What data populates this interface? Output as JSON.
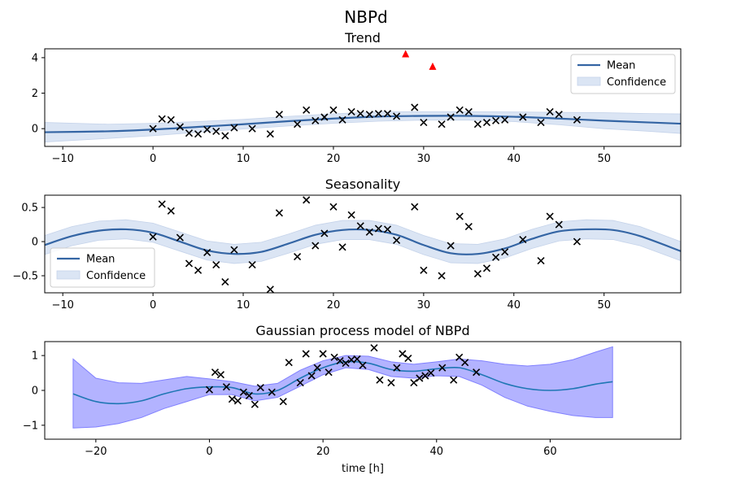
{
  "figure": {
    "suptitle": "NBPd"
  },
  "chart_data": [
    {
      "type": "line",
      "title": "Trend",
      "xlim": [
        -12,
        58.5
      ],
      "ylim": [
        -1.0,
        4.5
      ],
      "xticks": [
        -10,
        0,
        10,
        20,
        30,
        40,
        50
      ],
      "yticks": [
        0,
        2,
        4
      ],
      "xlabel": "",
      "legend": {
        "position": "top-right",
        "entries": [
          "Mean",
          "Confidence"
        ]
      },
      "colors": {
        "mean": "#3465a4",
        "band": "#dbe5f4",
        "points": "#000000",
        "outliers": "#ff0000"
      },
      "mean": {
        "x": [
          -12,
          -5,
          0,
          5,
          10,
          15,
          20,
          25,
          30,
          35,
          40,
          45,
          50,
          55,
          58.5
        ],
        "y": [
          -0.2,
          -0.15,
          -0.05,
          0.1,
          0.25,
          0.42,
          0.57,
          0.68,
          0.72,
          0.72,
          0.67,
          0.57,
          0.45,
          0.35,
          0.28
        ]
      },
      "band": {
        "lower": [
          -0.75,
          -0.55,
          -0.4,
          -0.2,
          -0.02,
          0.15,
          0.3,
          0.42,
          0.48,
          0.48,
          0.4,
          0.22,
          0.0,
          -0.15,
          -0.27
        ],
        "upper": [
          0.35,
          0.25,
          0.3,
          0.4,
          0.52,
          0.69,
          0.84,
          0.94,
          0.96,
          0.96,
          0.94,
          0.92,
          0.9,
          0.85,
          0.83
        ]
      },
      "points": {
        "x": [
          0,
          1,
          2,
          3,
          4,
          5,
          6,
          7,
          8,
          9,
          11,
          13,
          14,
          16,
          17,
          18,
          19,
          20,
          21,
          22,
          23,
          24,
          25,
          26,
          27,
          29,
          30,
          32,
          33,
          34,
          35,
          36,
          37,
          38,
          39,
          41,
          43,
          44,
          45,
          47
        ],
        "y": [
          0.0,
          0.55,
          0.5,
          0.1,
          -0.25,
          -0.3,
          -0.05,
          -0.15,
          -0.4,
          0.05,
          0.0,
          -0.3,
          0.8,
          0.25,
          1.05,
          0.45,
          0.65,
          1.05,
          0.5,
          0.95,
          0.85,
          0.8,
          0.85,
          0.85,
          0.7,
          1.2,
          0.35,
          0.25,
          0.65,
          1.05,
          0.95,
          0.25,
          0.35,
          0.45,
          0.5,
          0.65,
          0.35,
          0.95,
          0.8,
          0.5
        ]
      },
      "outliers": {
        "x": [
          28,
          31
        ],
        "y": [
          4.2,
          3.5
        ]
      }
    },
    {
      "type": "line",
      "title": "Seasonality",
      "xlim": [
        -12,
        58.5
      ],
      "ylim": [
        -0.75,
        0.68
      ],
      "xticks": [
        -10,
        0,
        10,
        20,
        30,
        40,
        50
      ],
      "yticks": [
        -0.5,
        0.0,
        0.5
      ],
      "xlabel": "",
      "legend": {
        "position": "lower-left",
        "entries": [
          "Mean",
          "Confidence"
        ]
      },
      "colors": {
        "mean": "#3465a4",
        "band": "#dbe5f4",
        "points": "#000000"
      },
      "mean": {
        "x": [
          -12,
          -9,
          -6,
          -3,
          0,
          3,
          6,
          9,
          12,
          15,
          18,
          21,
          24,
          27,
          30,
          33,
          36,
          39,
          42,
          45,
          48,
          51,
          54,
          58.5
        ],
        "y": [
          -0.05,
          0.08,
          0.16,
          0.18,
          0.13,
          0.0,
          -0.13,
          -0.18,
          -0.15,
          -0.03,
          0.1,
          0.17,
          0.17,
          0.1,
          -0.05,
          -0.17,
          -0.18,
          -0.1,
          0.04,
          0.15,
          0.18,
          0.17,
          0.08,
          -0.14
        ]
      },
      "band_halfwidth": 0.14,
      "points": {
        "x": [
          0,
          1,
          2,
          3,
          4,
          5,
          6,
          7,
          8,
          9,
          11,
          13,
          14,
          16,
          17,
          18,
          19,
          20,
          21,
          22,
          23,
          24,
          25,
          26,
          27,
          29,
          30,
          32,
          33,
          34,
          35,
          36,
          37,
          38,
          39,
          41,
          43,
          44,
          45,
          47
        ],
        "y": [
          0.07,
          0.55,
          0.45,
          0.06,
          -0.32,
          -0.42,
          -0.16,
          -0.34,
          -0.59,
          -0.12,
          -0.34,
          -0.7,
          0.42,
          -0.22,
          0.61,
          -0.06,
          0.12,
          0.51,
          -0.08,
          0.39,
          0.23,
          0.14,
          0.19,
          0.18,
          0.02,
          0.51,
          -0.42,
          -0.5,
          -0.06,
          0.37,
          0.22,
          -0.47,
          -0.39,
          -0.23,
          -0.15,
          0.03,
          -0.28,
          0.37,
          0.25,
          0.0
        ]
      }
    },
    {
      "type": "line",
      "title": "Gaussian process model of NBPd",
      "xlim": [
        -29,
        83
      ],
      "ylim": [
        -1.4,
        1.4
      ],
      "xticks": [
        -20,
        0,
        20,
        40,
        60
      ],
      "yticks": [
        -1,
        0,
        1
      ],
      "xlabel": "time [h]",
      "colors": {
        "mean": "#1f77b4",
        "band": "#b3b3ff",
        "band_edge": "#8080ff",
        "points": "#000000"
      },
      "mean": {
        "x": [
          -24,
          -20,
          -16,
          -12,
          -8,
          -4,
          0,
          4,
          8,
          12,
          16,
          20,
          24,
          28,
          32,
          36,
          40,
          44,
          48,
          52,
          56,
          60,
          64,
          68,
          71
        ],
        "y": [
          -0.1,
          -0.32,
          -0.38,
          -0.3,
          -0.1,
          0.05,
          0.1,
          0.08,
          -0.1,
          0.0,
          0.35,
          0.65,
          0.82,
          0.78,
          0.6,
          0.55,
          0.62,
          0.65,
          0.45,
          0.2,
          0.05,
          0.0,
          0.05,
          0.18,
          0.25
        ]
      },
      "band": {
        "lower": [
          -1.08,
          -1.05,
          -0.95,
          -0.78,
          -0.52,
          -0.32,
          -0.12,
          -0.12,
          -0.3,
          -0.2,
          0.12,
          0.45,
          0.65,
          0.6,
          0.4,
          0.35,
          0.42,
          0.4,
          0.15,
          -0.2,
          -0.45,
          -0.6,
          -0.72,
          -0.78,
          -0.78
        ]
      },
      "band_upper": [
        0.9,
        0.35,
        0.22,
        0.2,
        0.3,
        0.4,
        0.33,
        0.25,
        0.12,
        0.2,
        0.58,
        0.85,
        1.0,
        0.98,
        0.82,
        0.75,
        0.82,
        0.9,
        0.85,
        0.75,
        0.7,
        0.75,
        0.88,
        1.1,
        1.25
      ],
      "points": {
        "x": [
          0,
          1,
          2,
          3,
          4,
          5,
          6,
          7,
          8,
          9,
          11,
          13,
          14,
          16,
          17,
          18,
          19,
          20,
          21,
          22,
          23,
          24,
          25,
          26,
          27,
          29,
          30,
          32,
          33,
          34,
          35,
          36,
          37,
          38,
          39,
          41,
          43,
          44,
          45,
          47
        ],
        "y": [
          0.02,
          0.52,
          0.45,
          0.1,
          -0.25,
          -0.3,
          -0.05,
          -0.15,
          -0.4,
          0.08,
          -0.05,
          -0.32,
          0.8,
          0.22,
          1.05,
          0.42,
          0.65,
          1.05,
          0.52,
          0.95,
          0.85,
          0.78,
          0.88,
          0.9,
          0.72,
          1.22,
          0.3,
          0.22,
          0.65,
          1.05,
          0.92,
          0.22,
          0.35,
          0.42,
          0.5,
          0.65,
          0.3,
          0.95,
          0.8,
          0.52
        ]
      }
    }
  ]
}
